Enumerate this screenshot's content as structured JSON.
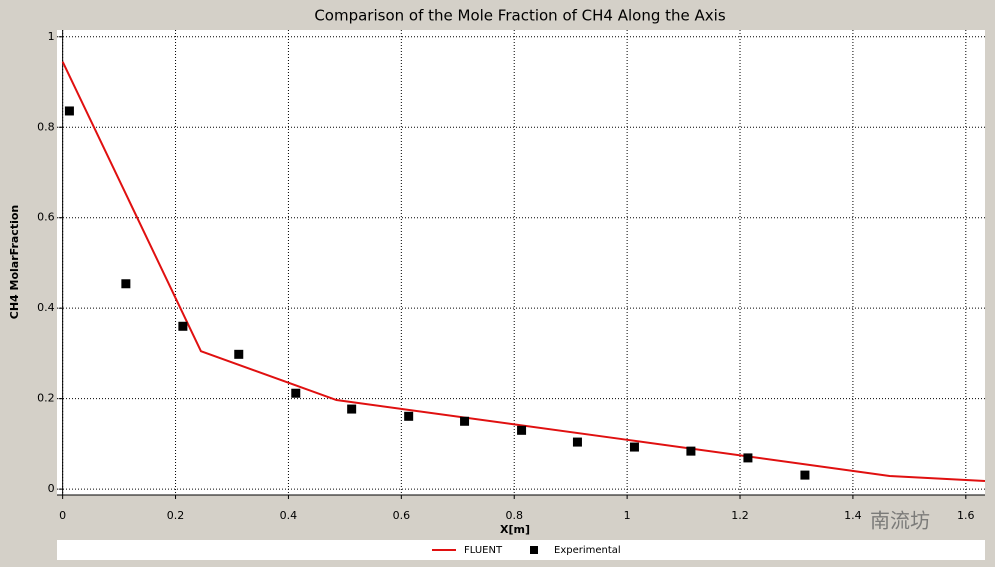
{
  "chart_data": {
    "type": "line",
    "title": "Comparison of the Mole Fraction of CH4 Along the Axis",
    "x_label": "X[m]",
    "y_label": "CH4 MolarFraction",
    "xlim": [
      -0.01,
      1.634
    ],
    "ylim": [
      -0.013,
      1.015
    ],
    "xticks": [
      0,
      0.2,
      0.4,
      0.6,
      0.8,
      1,
      1.2,
      1.4,
      1.6
    ],
    "yticks": [
      0,
      0.2,
      0.4,
      0.6,
      0.8,
      1
    ],
    "grid": true,
    "series": [
      {
        "name": "FLUENT",
        "color": "#e01010",
        "style": "line",
        "x": [
          0,
          0.245,
          0.485,
          1.0,
          1.465,
          1.634
        ],
        "values": [
          0.945,
          0.305,
          0.197,
          0.109,
          0.029,
          0.018
        ]
      },
      {
        "name": "Experimental",
        "color": "#000000",
        "style": "markers",
        "x": [
          0.012,
          0.112,
          0.213,
          0.312,
          0.413,
          0.512,
          0.613,
          0.712,
          0.813,
          0.912,
          1.013,
          1.113,
          1.214,
          1.315
        ],
        "values": [
          0.836,
          0.454,
          0.36,
          0.298,
          0.212,
          0.177,
          0.161,
          0.15,
          0.13,
          0.104,
          0.093,
          0.084,
          0.069,
          0.031
        ]
      }
    ],
    "watermark": "南流坊"
  }
}
